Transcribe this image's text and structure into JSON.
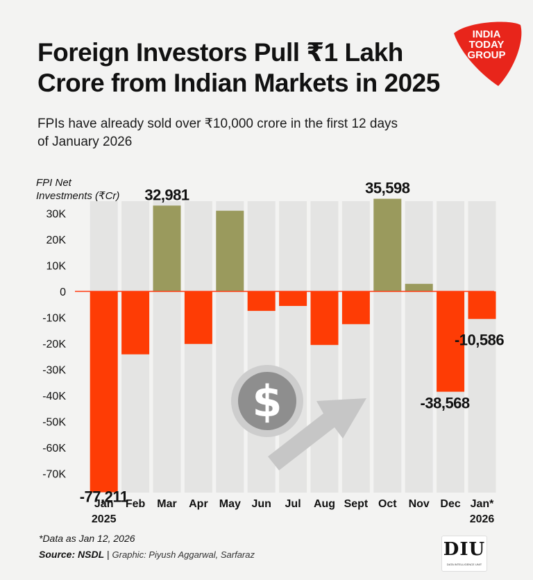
{
  "header": {
    "title": "Foreign Investors Pull ₹1 Lakh Crore from Indian Markets in 2025",
    "subtitle": "FPIs have already sold over ₹10,000 crore in the first 12 days of January 2026"
  },
  "logo": {
    "line1": "INDIA",
    "line2": "TODAY",
    "line3": "GROUP",
    "color": "#e8251b"
  },
  "chart_data": {
    "type": "bar",
    "ylabel_line1": "FPI Net",
    "ylabel_line2": "Investments  (₹Cr)",
    "categories": [
      "Jan 2025",
      "Feb",
      "Mar",
      "Apr",
      "May",
      "Jun",
      "Jul",
      "Aug",
      "Sept",
      "Oct",
      "Nov",
      "Dec",
      "Jan* 2026"
    ],
    "category_lines": [
      [
        "Jan",
        "2025"
      ],
      [
        "Feb"
      ],
      [
        "Mar"
      ],
      [
        "Apr"
      ],
      [
        "May"
      ],
      [
        "Jun"
      ],
      [
        "Jul"
      ],
      [
        "Aug"
      ],
      [
        "Sept"
      ],
      [
        "Oct"
      ],
      [
        "Nov"
      ],
      [
        "Dec"
      ],
      [
        "Jan*",
        "2026"
      ]
    ],
    "values": [
      -77211,
      -24200,
      32981,
      -20200,
      31000,
      -7500,
      -5600,
      -20600,
      -12600,
      35598,
      2900,
      -38568,
      -10586
    ],
    "data_labels": [
      "-77,211",
      "",
      "32,981",
      "",
      "",
      "",
      "",
      "",
      "",
      "35,598",
      "",
      "-38,568",
      "-10,586"
    ],
    "ylim": [
      -77211,
      38000
    ],
    "yticks": [
      30000,
      20000,
      10000,
      0,
      -10000,
      -20000,
      -30000,
      -40000,
      -50000,
      -60000,
      -70000
    ],
    "ytick_labels": [
      "30K",
      "20K",
      "10K",
      "0",
      "-10K",
      "-20K",
      "-30K",
      "-40K",
      "-50K",
      "-60K",
      "-70K"
    ],
    "colors": {
      "positive": "#9a9a5d",
      "negative": "#fe3c05",
      "column_bg": "#e4e4e3",
      "zero_line": "#ff3a10"
    }
  },
  "footer": {
    "note": "*Data as Jan 12, 2026",
    "source": "Source: NSDL",
    "graphic": "Graphic: Piyush Aggarwal, Sarfaraz"
  },
  "badge": {
    "text": "DIU",
    "subtext": "DATA INTELLIGENCE UNIT"
  }
}
